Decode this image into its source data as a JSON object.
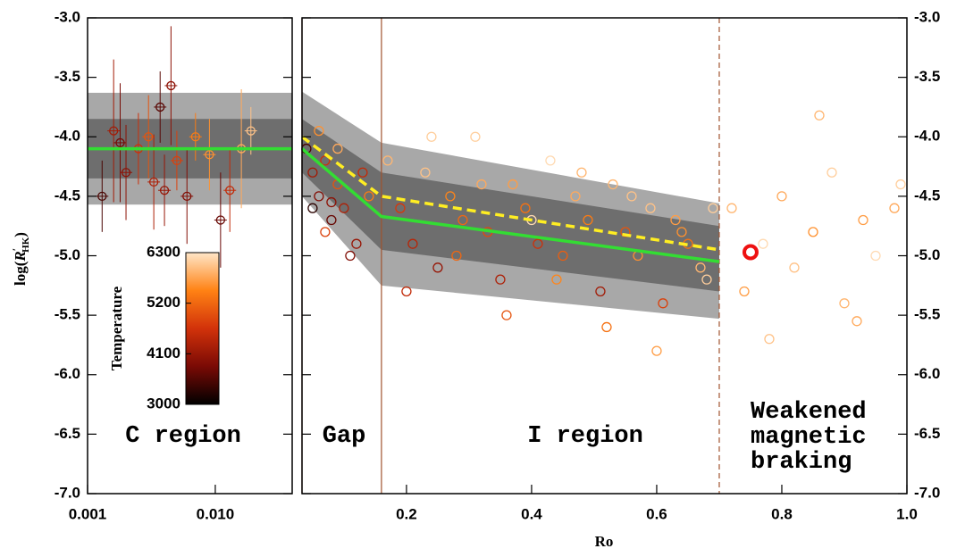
{
  "chart_data": {
    "type": "scatter",
    "xlabel": "Ro",
    "ylabel": {
      "prefix": "log(",
      "main": "R",
      "prime": "′",
      "sub": "HK",
      "suffix": ")"
    },
    "ylim": [
      -7.0,
      -3.0
    ],
    "yticks": [
      {
        "value": -7.0,
        "label": "-7.0"
      },
      {
        "value": -6.5,
        "label": "-6.5"
      },
      {
        "value": -6.0,
        "label": "-6.0"
      },
      {
        "value": -5.5,
        "label": "-5.5"
      },
      {
        "value": -5.0,
        "label": "-5.0"
      },
      {
        "value": -4.5,
        "label": "-4.5"
      },
      {
        "value": -4.0,
        "label": "-4.0"
      },
      {
        "value": -3.5,
        "label": "-3.5"
      },
      {
        "value": -3.0,
        "label": "-3.0"
      }
    ],
    "left_panel": {
      "xlim": [
        0.001,
        0.04
      ],
      "log_x": true,
      "xticks": [
        0.001,
        {
          "value": 0.01,
          "label": "0.010"
        }
      ],
      "band_outer": [
        -4.57,
        -3.63
      ],
      "band_inner": [
        -4.35,
        -3.85
      ],
      "fit": -4.1,
      "points": {
        "x": [
          0.0013,
          0.0016,
          0.0018,
          0.002,
          0.0025,
          0.003,
          0.0033,
          0.0037,
          0.004,
          0.005,
          0.006,
          0.007,
          0.009,
          0.011,
          0.013,
          0.016,
          0.019,
          0.0045
        ],
        "y": [
          -4.5,
          -3.95,
          -4.05,
          -4.3,
          -4.1,
          -4.0,
          -4.38,
          -3.75,
          -4.45,
          -4.2,
          -4.5,
          -4.0,
          -4.15,
          -4.7,
          -4.45,
          -4.1,
          -3.95,
          -3.57
        ],
        "yerr": [
          0.3,
          0.6,
          0.5,
          0.4,
          0.3,
          0.35,
          0.4,
          0.3,
          0.3,
          0.25,
          0.4,
          0.2,
          0.3,
          0.4,
          0.35,
          0.5,
          0.2,
          0.5
        ],
        "temp": [
          3500,
          4200,
          3800,
          4000,
          4600,
          5000,
          4300,
          3600,
          4100,
          4800,
          3900,
          5400,
          5600,
          3700,
          4500,
          5800,
          6000,
          4000
        ]
      }
    },
    "right_panel": {
      "xlim": [
        0.033,
        1.0
      ],
      "xticks": [
        0.2,
        0.4,
        0.6,
        0.8,
        {
          "value": 1.0,
          "label": "1.0"
        }
      ],
      "boundaries": [
        0.033,
        0.16,
        0.7
      ],
      "boundary_color": "#a0522d",
      "band": {
        "x": [
          0.033,
          0.16,
          0.7
        ],
        "outer_upper": [
          -3.62,
          -4.05,
          -4.56
        ],
        "outer_lower": [
          -4.5,
          -5.25,
          -5.53
        ],
        "inner_upper": [
          -3.85,
          -4.3,
          -4.75
        ],
        "inner_lower": [
          -4.3,
          -4.95,
          -5.3
        ]
      },
      "fit": {
        "x": [
          0.033,
          0.16,
          0.7
        ],
        "y": [
          -4.1,
          -4.67,
          -5.05
        ],
        "color": "#33dd33"
      },
      "trend": {
        "x": [
          0.033,
          0.16,
          0.7
        ],
        "y": [
          -4.0,
          -4.5,
          -4.95
        ],
        "color": "#ffee22"
      },
      "highlight": {
        "x": 0.75,
        "y": -4.97,
        "color": "#ee1111"
      },
      "points": {
        "x": [
          0.04,
          0.05,
          0.06,
          0.07,
          0.08,
          0.09,
          0.1,
          0.12,
          0.14,
          0.05,
          0.07,
          0.09,
          0.11,
          0.13,
          0.06,
          0.08,
          0.17,
          0.19,
          0.21,
          0.23,
          0.25,
          0.27,
          0.29,
          0.31,
          0.33,
          0.35,
          0.37,
          0.39,
          0.41,
          0.43,
          0.45,
          0.47,
          0.49,
          0.51,
          0.53,
          0.55,
          0.57,
          0.59,
          0.61,
          0.63,
          0.65,
          0.67,
          0.69,
          0.2,
          0.24,
          0.28,
          0.32,
          0.36,
          0.4,
          0.44,
          0.48,
          0.52,
          0.56,
          0.6,
          0.64,
          0.68,
          0.72,
          0.74,
          0.77,
          0.8,
          0.82,
          0.85,
          0.88,
          0.9,
          0.93,
          0.95,
          0.98,
          0.78,
          0.86,
          0.92,
          0.99
        ],
        "y": [
          -4.1,
          -4.3,
          -4.5,
          -4.2,
          -4.7,
          -4.4,
          -4.6,
          -4.9,
          -4.5,
          -4.6,
          -4.8,
          -4.1,
          -5.0,
          -4.3,
          -3.95,
          -4.55,
          -4.2,
          -4.6,
          -4.9,
          -4.3,
          -5.1,
          -4.5,
          -4.7,
          -4.0,
          -4.8,
          -5.2,
          -4.4,
          -4.6,
          -4.9,
          -4.2,
          -5.0,
          -4.5,
          -4.7,
          -5.3,
          -4.4,
          -4.8,
          -5.0,
          -4.6,
          -5.4,
          -4.7,
          -4.9,
          -5.1,
          -4.6,
          -5.3,
          -4.0,
          -5.0,
          -4.4,
          -5.5,
          -4.7,
          -5.2,
          -4.3,
          -5.6,
          -4.5,
          -5.8,
          -4.8,
          -5.2,
          -4.6,
          -5.3,
          -4.9,
          -4.5,
          -5.1,
          -4.8,
          -4.3,
          -5.4,
          -4.7,
          -5.0,
          -4.6,
          -5.7,
          -3.82,
          -5.55,
          -4.4
        ],
        "temp": [
          3500,
          4200,
          3900,
          4600,
          3700,
          5000,
          4300,
          4100,
          5400,
          3300,
          4800,
          5800,
          3900,
          4500,
          5600,
          4000,
          5900,
          4700,
          4400,
          6000,
          4100,
          5500,
          5200,
          6100,
          4900,
          4300,
          5700,
          5300,
          4600,
          6200,
          5100,
          5800,
          5400,
          4200,
          5900,
          5000,
          5600,
          6000,
          4800,
          5700,
          5300,
          5900,
          6100,
          4500,
          6100,
          5200,
          5800,
          5000,
          6200,
          5500,
          5900,
          5300,
          6000,
          5700,
          5600,
          6100,
          5900,
          5700,
          6200,
          5800,
          6000,
          5600,
          6100,
          5900,
          5700,
          6200,
          5800,
          6000,
          5900,
          5800,
          6100
        ]
      }
    },
    "colorbar": {
      "label": "Temperature",
      "lim": [
        3000,
        6300
      ],
      "ticks": [
        3000,
        4100,
        5200,
        6300
      ],
      "colors": [
        "#000000",
        "#7a0a05",
        "#d2320a",
        "#ff8214",
        "#ffe6c8"
      ]
    },
    "band_colors": {
      "outer": "#a8a8a8",
      "inner": "#6e6e6e"
    },
    "annotations": {
      "c_region": "C region",
      "gap": "Gap",
      "i_region": "I region",
      "weakened": [
        "Weakened",
        "magnetic",
        "braking"
      ]
    }
  }
}
